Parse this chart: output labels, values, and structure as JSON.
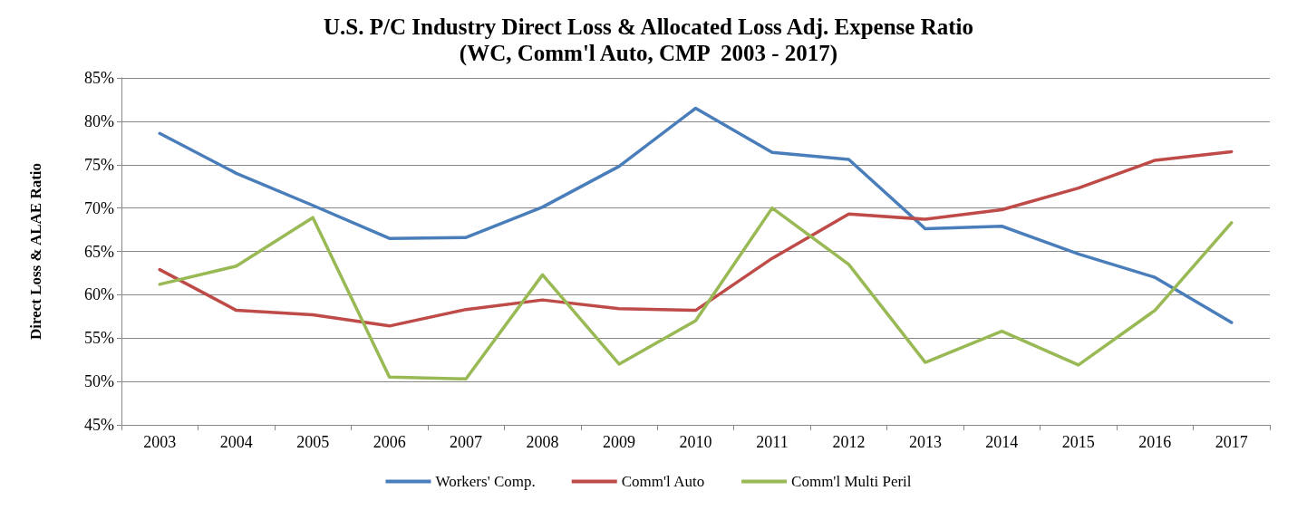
{
  "chart_data": {
    "type": "line",
    "title": "U.S. P/C Industry Direct Loss & Allocated Loss Adj. Expense Ratio",
    "subtitle": "(WC, Comm'l Auto, CMP  2003 - 2017)",
    "ylabel": "Direct Loss & ALAE Ratio",
    "categories": [
      "2003",
      "2004",
      "2005",
      "2006",
      "2007",
      "2008",
      "2009",
      "2010",
      "2011",
      "2012",
      "2013",
      "2014",
      "2015",
      "2016",
      "2017"
    ],
    "series": [
      {
        "name": "Workers' Comp.",
        "color": "#4a7ebb",
        "values": [
          78.6,
          74.0,
          70.3,
          66.5,
          66.6,
          70.1,
          74.8,
          81.5,
          76.4,
          75.6,
          67.6,
          67.9,
          64.7,
          62.0,
          56.8
        ]
      },
      {
        "name": "Comm'l Auto",
        "color": "#be4b48",
        "values": [
          62.9,
          58.2,
          57.7,
          56.4,
          58.3,
          59.4,
          58.4,
          58.2,
          64.2,
          69.3,
          68.7,
          69.8,
          72.3,
          75.5,
          76.5
        ]
      },
      {
        "name": "Comm'l Multi Peril",
        "color": "#98b954",
        "values": [
          61.2,
          63.3,
          68.9,
          50.5,
          50.3,
          62.3,
          52.0,
          57.0,
          70.0,
          63.5,
          52.2,
          55.8,
          51.9,
          58.2,
          68.3
        ]
      }
    ],
    "ylim": [
      45,
      85
    ],
    "yticks": [
      {
        "value": 45,
        "label": "45%"
      },
      {
        "value": 50,
        "label": "50%"
      },
      {
        "value": 55,
        "label": "55%"
      },
      {
        "value": 60,
        "label": "60%"
      },
      {
        "value": 65,
        "label": "65%"
      },
      {
        "value": 70,
        "label": "70%"
      },
      {
        "value": 75,
        "label": "75%"
      },
      {
        "value": 80,
        "label": "80%"
      },
      {
        "value": 85,
        "label": "85%"
      }
    ],
    "grid": "y",
    "legend": "bottom",
    "marker": "none",
    "line_style": "solid"
  }
}
